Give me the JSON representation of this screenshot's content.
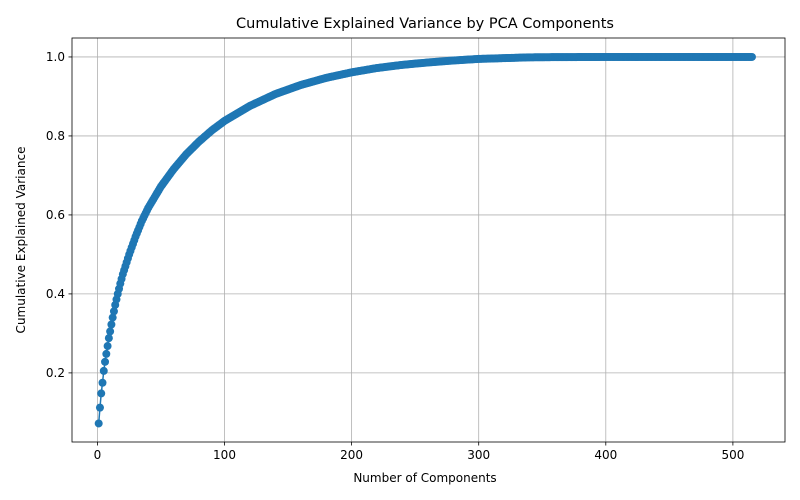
{
  "chart_data": {
    "type": "line",
    "title": "Cumulative Explained Variance by PCA Components",
    "xlabel": "Number of Components",
    "ylabel": "Cumulative Explained Variance",
    "xlim": [
      -20,
      541
    ],
    "ylim": [
      0.025,
      1.048
    ],
    "x_ticks": [
      0,
      100,
      200,
      300,
      400,
      500
    ],
    "x_tick_labels": [
      "0",
      "100",
      "200",
      "300",
      "400",
      "500"
    ],
    "y_ticks": [
      0.2,
      0.4,
      0.6,
      0.8,
      1.0
    ],
    "y_tick_labels": [
      "0.2",
      "0.4",
      "0.6",
      "0.8",
      "1.0"
    ],
    "grid": true,
    "marker": "circle",
    "series": [
      {
        "color": "#1f77b4",
        "x_range": [
          1,
          515
        ],
        "x": [
          1,
          2,
          3,
          4,
          5,
          6,
          7,
          8,
          9,
          10,
          12,
          14,
          16,
          18,
          20,
          25,
          30,
          35,
          40,
          50,
          60,
          70,
          80,
          90,
          100,
          120,
          140,
          160,
          180,
          200,
          220,
          240,
          260,
          280,
          300,
          320,
          340,
          360,
          400,
          450,
          515
        ],
        "values": [
          0.072,
          0.112,
          0.148,
          0.175,
          0.205,
          0.228,
          0.248,
          0.268,
          0.288,
          0.305,
          0.34,
          0.372,
          0.4,
          0.426,
          0.45,
          0.5,
          0.545,
          0.585,
          0.618,
          0.672,
          0.716,
          0.754,
          0.786,
          0.814,
          0.838,
          0.876,
          0.906,
          0.929,
          0.947,
          0.961,
          0.972,
          0.98,
          0.986,
          0.991,
          0.995,
          0.997,
          0.999,
          0.9995,
          1.0,
          1.0,
          1.0
        ]
      }
    ]
  }
}
